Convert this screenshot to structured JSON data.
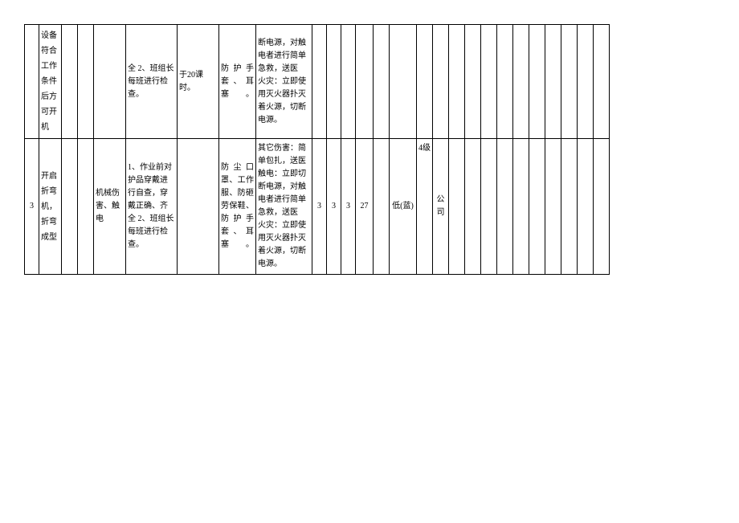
{
  "row1": {
    "col2_lines": [
      "设备",
      "符合",
      "工作",
      "条件",
      "后方",
      "可开",
      "机"
    ],
    "col6": "全 2、班组长每班进行检查。",
    "col7": "于20课时。",
    "col8": "防护手套、耳塞。",
    "col9": "断电源，对触电者进行简单急救，送医\n火灾：立即使用灭火器扑灭着火源，切断电源。"
  },
  "row2": {
    "col1": "3",
    "col2": "开启折弯机，折弯成型",
    "col5": "机械伤害、触电",
    "col6": "1、作业前对护品穿戴进行自查，穿戴正确、齐全 2、班组长每班进行检查。",
    "col8": "防尘口罩、工作服、防砸劳保鞋、防护手套、耳塞。",
    "col9": "其它伤害：简单包扎，送医\n触电：立即切断电源，对触电者进行简单急救，送医\n火灾：立即使用灭火器扑灭着火源，切断电源。",
    "col10": "3",
    "col11": "3",
    "col12": "3",
    "col13": "27",
    "col15": "低(蓝)",
    "col16": "4级",
    "col17": "公司"
  }
}
